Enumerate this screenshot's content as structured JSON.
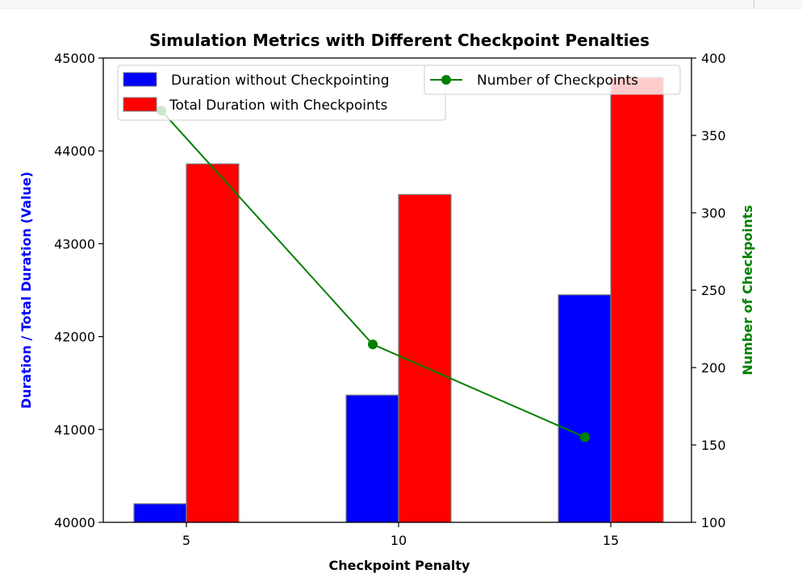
{
  "chart_data": {
    "type": "bar",
    "title": "Simulation Metrics with Different Checkpoint Penalties",
    "xlabel": "Checkpoint Penalty",
    "ylabel_left": "Duration / Total Duration (Value)",
    "ylabel_right": "Number of Checkpoints",
    "categories": [
      "5",
      "10",
      "15"
    ],
    "ylim_left": [
      40000,
      45000
    ],
    "yticks_left": [
      "40000",
      "41000",
      "42000",
      "43000",
      "44000",
      "45000"
    ],
    "ylim_right": [
      100,
      400
    ],
    "yticks_right": [
      "100",
      "150",
      "200",
      "250",
      "300",
      "350",
      "400"
    ],
    "series": [
      {
        "name": "Duration without Checkpointing",
        "type": "bar",
        "axis": "left",
        "color": "#0000ff",
        "values": [
          40200,
          41370,
          42450
        ]
      },
      {
        "name": "Total Duration with Checkpoints",
        "type": "bar",
        "axis": "left",
        "color": "#ff0000",
        "values": [
          43860,
          43530,
          44790
        ]
      },
      {
        "name": "Number of Checkpoints",
        "type": "line",
        "axis": "right",
        "color": "#008000",
        "values": [
          366,
          215,
          155
        ]
      }
    ],
    "legend_left_location": "upper left",
    "legend_right_location": "upper right",
    "grid": false,
    "left_label_color": "#0000ff",
    "right_label_color": "#008000"
  }
}
